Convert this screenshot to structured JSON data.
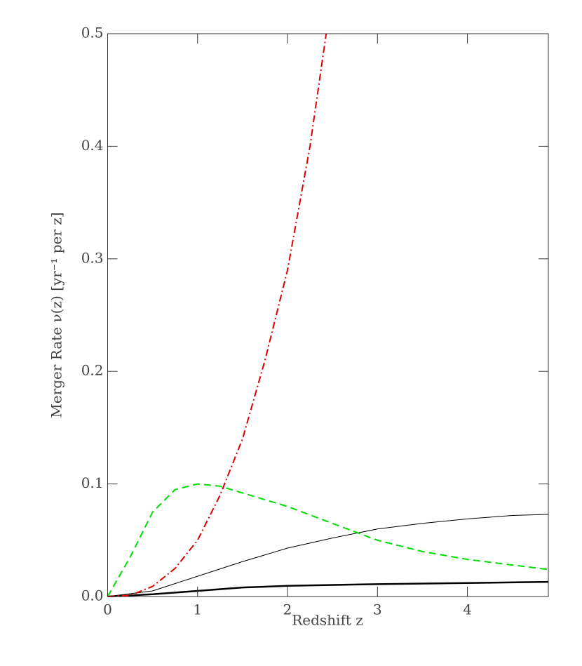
{
  "chart_data": {
    "type": "line",
    "xlabel": "Redshift z",
    "ylabel": "Merger Rate ν(z) [yr⁻¹ per z]",
    "xlim": [
      0,
      4.9
    ],
    "ylim": [
      0,
      0.5
    ],
    "xticks": [
      0,
      1,
      2,
      3,
      4
    ],
    "yticks": [
      {
        "value": 0,
        "label": "0.0"
      },
      0.1,
      0.2,
      0.3,
      0.4,
      0.5
    ],
    "series": [
      {
        "color": "#000000",
        "width": 2.5,
        "dash": "none",
        "x": [
          0,
          0.5,
          1,
          1.5,
          2,
          3,
          4,
          4.9
        ],
        "values": [
          0,
          0.002,
          0.005,
          0.008,
          0.0095,
          0.011,
          0.012,
          0.013
        ]
      },
      {
        "color": "#000000",
        "width": 1,
        "dash": "none",
        "x": [
          0,
          0.5,
          1,
          1.5,
          2,
          2.5,
          3,
          3.5,
          4,
          4.5,
          4.9
        ],
        "values": [
          0,
          0.005,
          0.018,
          0.031,
          0.043,
          0.052,
          0.06,
          0.065,
          0.069,
          0.072,
          0.073
        ]
      },
      {
        "color": "#00dd00",
        "width": 2,
        "dash": "10,6",
        "x": [
          0,
          0.25,
          0.5,
          0.75,
          1,
          1.25,
          1.5,
          2,
          2.5,
          3,
          3.5,
          4,
          4.5,
          4.9
        ],
        "values": [
          0,
          0.035,
          0.075,
          0.095,
          0.1,
          0.098,
          0.092,
          0.08,
          0.065,
          0.05,
          0.04,
          0.033,
          0.028,
          0.024
        ]
      },
      {
        "color": "#dd0000",
        "width": 2,
        "dash": "10,4,2,4",
        "x": [
          0,
          0.25,
          0.5,
          0.75,
          1,
          1.25,
          1.5,
          1.75,
          2,
          2.25,
          2.43
        ],
        "values": [
          0,
          0.001,
          0.009,
          0.025,
          0.05,
          0.09,
          0.14,
          0.21,
          0.29,
          0.4,
          0.5
        ]
      }
    ]
  }
}
